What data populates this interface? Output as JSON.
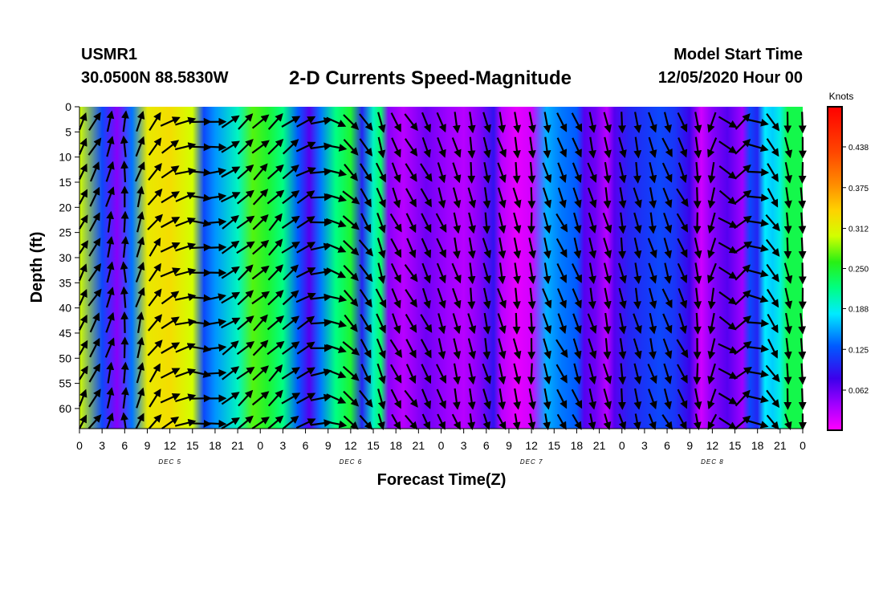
{
  "header": {
    "station_id": "USMR1",
    "coordinates": "30.0500N 88.5830W",
    "title": "2-D Currents Speed-Magnitude",
    "model_start_label": "Model Start Time",
    "model_start_value": "12/05/2020 Hour 00"
  },
  "chart_data": {
    "type": "heatmap",
    "title": "2-D Currents Speed-Magnitude",
    "xlabel": "Forecast Time(Z)",
    "ylabel": "Depth (ft)",
    "x_range_hours": [
      0,
      96
    ],
    "x_tick_hours": [
      0,
      3,
      6,
      9,
      12,
      15,
      18,
      21,
      24,
      27,
      30,
      33,
      36,
      39,
      42,
      45,
      48,
      51,
      54,
      57,
      60,
      63,
      66,
      69,
      72,
      75,
      78,
      81,
      84,
      87,
      90,
      93,
      96
    ],
    "x_tick_labels": [
      "0",
      "3",
      "6",
      "9",
      "12",
      "15",
      "18",
      "21",
      "0",
      "3",
      "6",
      "9",
      "12",
      "15",
      "18",
      "21",
      "0",
      "3",
      "6",
      "9",
      "12",
      "15",
      "18",
      "21",
      "0",
      "3",
      "6",
      "9",
      "12",
      "15",
      "18",
      "21",
      "0"
    ],
    "day_labels": [
      {
        "label": "DEC 5",
        "hour": 12
      },
      {
        "label": "DEC 6",
        "hour": 36
      },
      {
        "label": "DEC 7",
        "hour": 60
      },
      {
        "label": "DEC 8",
        "hour": 84
      }
    ],
    "y_range_ft": [
      0,
      64
    ],
    "y_ticks": [
      0,
      5,
      10,
      15,
      20,
      25,
      30,
      35,
      40,
      45,
      50,
      55,
      60
    ],
    "colorbar": {
      "label": "Knots",
      "range": [
        0.0,
        0.5
      ],
      "ticks": [
        0.062,
        0.125,
        0.188,
        0.25,
        0.312,
        0.375,
        0.438
      ],
      "tick_labels": [
        "0.062",
        "0.125",
        "0.188",
        "0.250",
        "0.312",
        "0.375",
        "0.438"
      ]
    },
    "speed_by_hour_knots": [
      [
        0,
        0.3
      ],
      [
        3,
        0.12
      ],
      [
        5,
        0.05
      ],
      [
        7,
        0.14
      ],
      [
        9,
        0.32
      ],
      [
        12,
        0.33
      ],
      [
        15,
        0.3
      ],
      [
        16.5,
        0.12
      ],
      [
        18,
        0.15
      ],
      [
        21,
        0.2
      ],
      [
        23,
        0.27
      ],
      [
        25,
        0.25
      ],
      [
        27,
        0.22
      ],
      [
        29,
        0.13
      ],
      [
        30.5,
        0.07
      ],
      [
        32,
        0.14
      ],
      [
        34,
        0.22
      ],
      [
        36,
        0.25
      ],
      [
        37.5,
        0.1
      ],
      [
        39,
        0.2
      ],
      [
        40,
        0.23
      ],
      [
        41,
        0.05
      ],
      [
        43,
        0.03
      ],
      [
        46,
        0.06
      ],
      [
        49,
        0.04
      ],
      [
        51,
        0.03
      ],
      [
        53,
        0.05
      ],
      [
        55,
        0.09
      ],
      [
        56,
        0.03
      ],
      [
        58,
        0.01
      ],
      [
        60,
        0.02
      ],
      [
        62,
        0.16
      ],
      [
        64,
        0.14
      ],
      [
        66,
        0.13
      ],
      [
        67,
        0.07
      ],
      [
        68.5,
        0.06
      ],
      [
        70,
        0.03
      ],
      [
        71,
        0.07
      ],
      [
        73,
        0.1
      ],
      [
        75,
        0.11
      ],
      [
        77,
        0.12
      ],
      [
        79,
        0.11
      ],
      [
        81,
        0.08
      ],
      [
        82.5,
        0.02
      ],
      [
        84,
        0.05
      ],
      [
        86,
        0.07
      ],
      [
        88,
        0.04
      ],
      [
        89,
        0.12
      ],
      [
        90,
        0.1
      ],
      [
        91,
        0.18
      ],
      [
        92,
        0.17
      ],
      [
        93,
        0.19
      ],
      [
        94,
        0.24
      ],
      [
        96,
        0.24
      ]
    ],
    "vector_angle_by_hour_deg": [
      [
        0,
        45
      ],
      [
        6,
        0
      ],
      [
        9,
        25
      ],
      [
        12,
        60
      ],
      [
        15,
        80
      ],
      [
        17,
        110
      ],
      [
        19,
        60
      ],
      [
        22,
        50
      ],
      [
        26,
        45
      ],
      [
        30,
        60
      ],
      [
        33,
        95
      ],
      [
        36,
        135
      ],
      [
        40,
        160
      ],
      [
        44,
        150
      ],
      [
        48,
        160
      ],
      [
        52,
        170
      ],
      [
        56,
        165
      ],
      [
        60,
        175
      ],
      [
        64,
        155
      ],
      [
        68,
        165
      ],
      [
        72,
        170
      ],
      [
        76,
        165
      ],
      [
        80,
        155
      ],
      [
        84,
        195
      ],
      [
        88,
        50
      ],
      [
        90,
        100
      ],
      [
        93,
        170
      ],
      [
        96,
        175
      ]
    ],
    "vector_columns_hours": [
      0,
      2,
      4,
      6,
      8,
      10,
      12,
      14,
      16,
      18,
      20,
      22,
      24,
      26,
      28,
      30,
      32,
      34,
      36,
      38,
      40,
      42,
      44,
      46,
      48,
      50,
      52,
      54,
      56,
      58,
      60,
      62,
      64,
      66,
      68,
      70,
      72,
      74,
      76,
      78,
      80,
      82,
      84,
      86,
      88,
      90,
      92,
      94,
      96
    ],
    "vector_rows_ft": [
      3,
      8,
      13,
      18,
      23,
      28,
      33,
      38,
      43,
      48,
      53,
      58,
      63
    ]
  }
}
